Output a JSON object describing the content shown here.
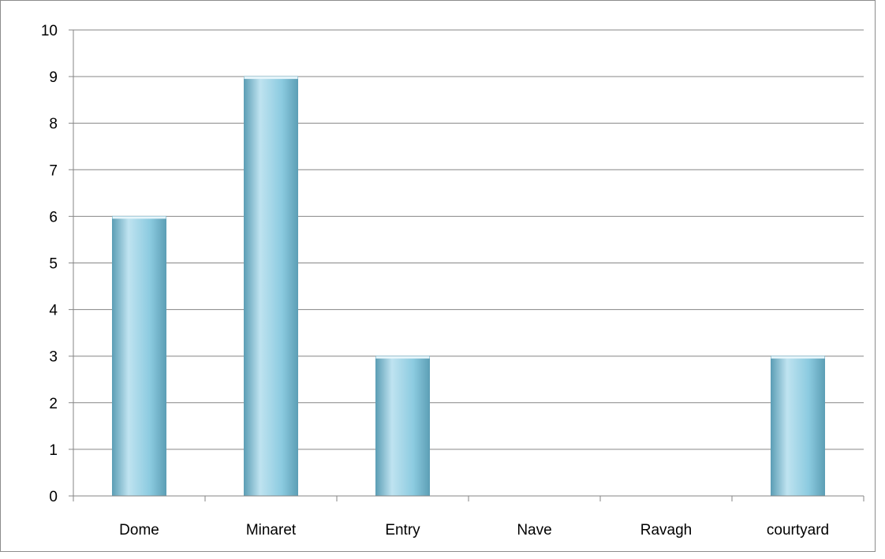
{
  "chart_data": {
    "type": "bar",
    "title": "",
    "xlabel": "",
    "ylabel": "",
    "categories": [
      "Dome",
      "Minaret",
      "Entry",
      "Nave",
      "Ravagh",
      "courtyard"
    ],
    "values": [
      6,
      9,
      3,
      0,
      0,
      3
    ],
    "ylim": [
      0,
      10
    ],
    "y_ticks": [
      0,
      1,
      2,
      3,
      4,
      5,
      6,
      7,
      8,
      9,
      10
    ],
    "grid": true,
    "legend": "none",
    "colors": {
      "bar_light": "#bfe3f0",
      "bar_mid": "#8ccbe0",
      "bar_dark": "#5d9fb6",
      "gridline": "#868686",
      "axis": "#868686"
    }
  }
}
